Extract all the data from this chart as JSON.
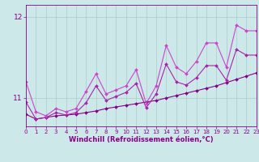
{
  "xlabel": "Windchill (Refroidissement éolien,°C)",
  "bg_color": "#cce8e8",
  "grid_color": "#aacccc",
  "line_color1": "#880088",
  "line_color2": "#aa22aa",
  "line_color3": "#cc44cc",
  "xlim": [
    0,
    23
  ],
  "ylim": [
    10.65,
    12.15
  ],
  "yticks": [
    11,
    12
  ],
  "xticks": [
    0,
    1,
    2,
    3,
    4,
    5,
    6,
    7,
    8,
    9,
    10,
    11,
    12,
    13,
    14,
    15,
    16,
    17,
    18,
    19,
    20,
    21,
    22,
    23
  ],
  "s1_x": [
    0,
    1,
    2,
    3,
    4,
    5,
    6,
    7,
    8,
    9,
    10,
    11,
    12,
    13,
    14,
    15,
    16,
    17,
    18,
    19,
    20,
    21,
    22,
    23
  ],
  "s1_y": [
    10.8,
    10.74,
    10.76,
    10.78,
    10.79,
    10.8,
    10.82,
    10.84,
    10.87,
    10.89,
    10.91,
    10.93,
    10.95,
    10.97,
    11.0,
    11.03,
    11.06,
    11.09,
    11.12,
    11.15,
    11.19,
    11.23,
    11.27,
    11.31
  ],
  "s2_x": [
    0,
    1,
    2,
    3,
    4,
    5,
    6,
    7,
    8,
    9,
    10,
    11,
    12,
    13,
    14,
    15,
    16,
    17,
    18,
    19,
    20,
    21,
    22,
    23
  ],
  "s2_y": [
    10.95,
    10.74,
    10.76,
    10.82,
    10.79,
    10.82,
    10.94,
    11.15,
    10.97,
    11.02,
    11.07,
    11.18,
    10.88,
    11.05,
    11.42,
    11.2,
    11.16,
    11.25,
    11.4,
    11.4,
    11.22,
    11.6,
    11.53,
    11.53
  ],
  "s3_x": [
    0,
    1,
    2,
    3,
    4,
    5,
    6,
    7,
    8,
    9,
    10,
    11,
    12,
    13,
    14,
    15,
    16,
    17,
    18,
    19,
    20,
    21,
    22,
    23
  ],
  "s3_y": [
    11.2,
    10.83,
    10.78,
    10.87,
    10.83,
    10.87,
    11.08,
    11.3,
    11.05,
    11.1,
    11.15,
    11.35,
    10.93,
    11.15,
    11.65,
    11.38,
    11.3,
    11.45,
    11.68,
    11.68,
    11.38,
    11.9,
    11.83,
    11.83
  ],
  "marker": "D",
  "markersize": 2,
  "linewidth": 0.8,
  "tick_fontsize": 5,
  "label_fontsize": 6,
  "tick_color": "#880088",
  "axis_color": "#880088"
}
